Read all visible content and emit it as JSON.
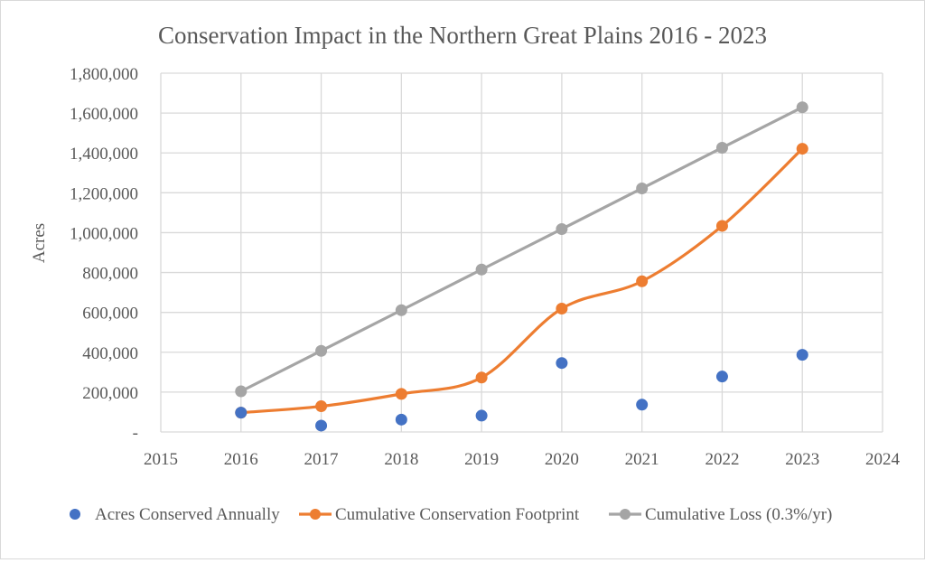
{
  "chart_data": {
    "type": "scatter",
    "title": "Conservation Impact in the Northern Great Plains 2016 - 2023",
    "xlabel": "",
    "ylabel": "Acres",
    "xlim": [
      2015,
      2024
    ],
    "ylim": [
      0,
      1800000
    ],
    "x_ticks": [
      "2015",
      "2016",
      "2017",
      "2018",
      "2019",
      "2020",
      "2021",
      "2022",
      "2023",
      "2024"
    ],
    "y_ticks": [
      "-",
      "200,000",
      "400,000",
      "600,000",
      "800,000",
      "1,000,000",
      "1,200,000",
      "1,400,000",
      "1,600,000",
      "1,800,000"
    ],
    "grid": true,
    "legend_position": "bottom",
    "x": [
      2016,
      2017,
      2018,
      2019,
      2020,
      2021,
      2022,
      2023
    ],
    "series": [
      {
        "name": "Acres Conserved Annually",
        "style": "markers",
        "color": "#4472c4",
        "values": [
          97000,
          32000,
          62000,
          82000,
          346000,
          137000,
          278000,
          387000
        ]
      },
      {
        "name": "Cumulative Conservation Footprint",
        "style": "smooth-line-markers",
        "color": "#ed7d31",
        "values": [
          97000,
          129000,
          191000,
          273000,
          619000,
          756000,
          1034000,
          1421000
        ]
      },
      {
        "name": "Cumulative Loss (0.3%/yr)",
        "style": "line-markers",
        "color": "#a5a5a5",
        "values": [
          204000,
          407000,
          611000,
          815000,
          1018000,
          1222000,
          1426000,
          1629000
        ]
      }
    ]
  }
}
